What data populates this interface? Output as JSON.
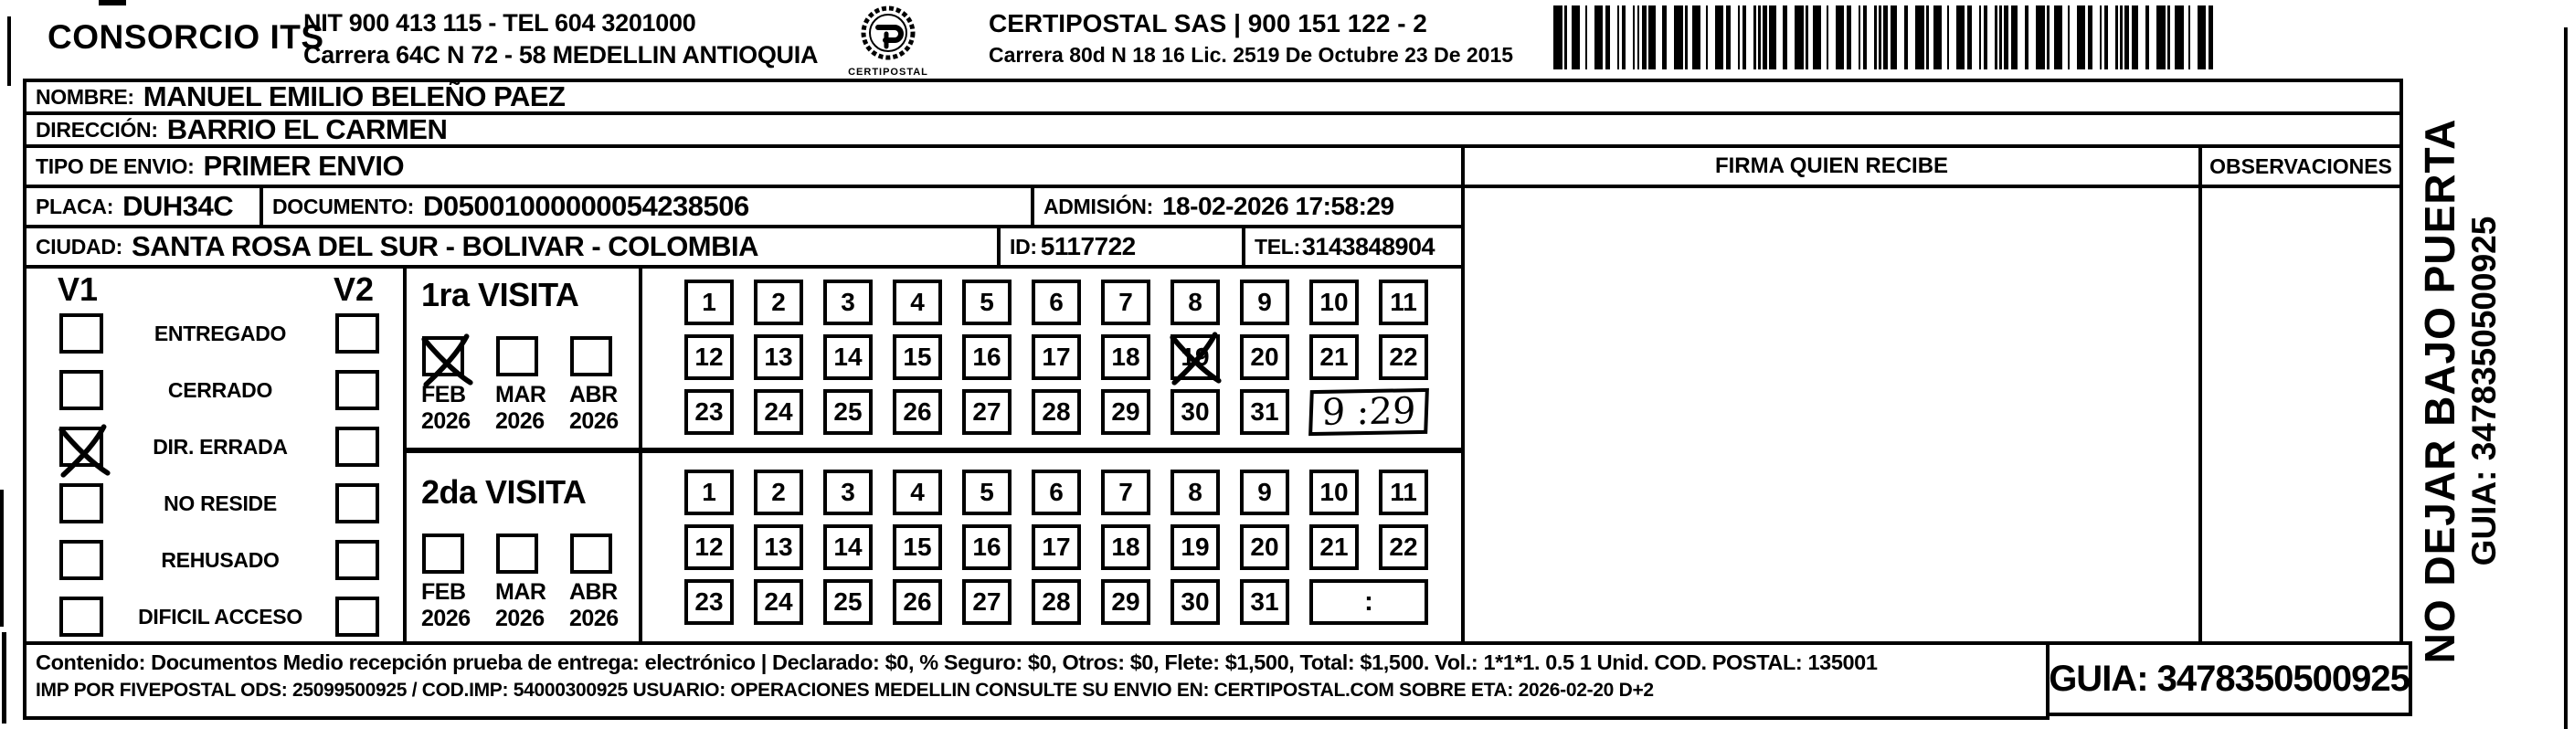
{
  "header": {
    "company": "CONSORCIO ITS",
    "nit_line": "NIT 900 413 115 - TEL 604 3201000",
    "address_line": "Carrera 64C N 72 - 58 MEDELLIN ANTIOQUIA",
    "logo_text": "CERTIPOSTAL",
    "cert_name_line": "CERTIPOSTAL SAS | 900 151 122 - 2",
    "cert_address_line": "Carrera 80d N 18 16  Lic. 2519 De Octubre 23 De 2015"
  },
  "recipient": {
    "nombre_label": "NOMBRE:",
    "nombre": "MANUEL EMILIO BELEÑO PAEZ",
    "direccion_label": "DIRECCIÓN:",
    "direccion": "BARRIO EL CARMEN",
    "tipo_envio_label": "TIPO DE ENVIO:",
    "tipo_envio": "PRIMER ENVIO",
    "placa_label": "PLACA:",
    "placa": "DUH34C",
    "documento_label": "DOCUMENTO:",
    "documento": "D05001000000054238506",
    "admision_label": "ADMISIÓN:",
    "admision": "18-02-2026 17:58:29",
    "ciudad_label": "CIUDAD:",
    "ciudad": "SANTA ROSA DEL SUR - BOLIVAR - COLOMBIA",
    "id_label": "ID:",
    "id_value": "5117722",
    "tel_label": "TEL:",
    "tel_value": "3143848904"
  },
  "signature": {
    "firma_label": "FIRMA QUIEN RECIBE",
    "observaciones_label": "OBSERVACIONES"
  },
  "status": {
    "v1": "V1",
    "v2": "V2",
    "options": [
      {
        "label": "ENTREGADO",
        "v1_checked": false,
        "v2_checked": false
      },
      {
        "label": "CERRADO",
        "v1_checked": false,
        "v2_checked": false
      },
      {
        "label": "DIR. ERRADA",
        "v1_checked": true,
        "v2_checked": false
      },
      {
        "label": "NO RESIDE",
        "v1_checked": false,
        "v2_checked": false
      },
      {
        "label": "REHUSADO",
        "v1_checked": false,
        "v2_checked": false
      },
      {
        "label": "DIFICIL ACCESO",
        "v1_checked": false,
        "v2_checked": false
      }
    ]
  },
  "visits": {
    "first": {
      "title": "1ra VISITA",
      "months": [
        {
          "month": "FEB",
          "year": "2026",
          "checked": true
        },
        {
          "month": "MAR",
          "year": "2026",
          "checked": false
        },
        {
          "month": "ABR",
          "year": "2026",
          "checked": false
        }
      ],
      "day_rows": [
        [
          1,
          2,
          3,
          4,
          5,
          6,
          7,
          8,
          9,
          10,
          11
        ],
        [
          12,
          13,
          14,
          15,
          16,
          17,
          18,
          19,
          20,
          21,
          22
        ],
        [
          23,
          24,
          25,
          26,
          27,
          28,
          29,
          30,
          31
        ]
      ],
      "crossed_day": 19,
      "time_value": "9 :29",
      "time_handwritten": true
    },
    "second": {
      "title": "2da VISITA",
      "months": [
        {
          "month": "FEB",
          "year": "2026",
          "checked": false
        },
        {
          "month": "MAR",
          "year": "2026",
          "checked": false
        },
        {
          "month": "ABR",
          "year": "2026",
          "checked": false
        }
      ],
      "day_rows": [
        [
          1,
          2,
          3,
          4,
          5,
          6,
          7,
          8,
          9,
          10,
          11
        ],
        [
          12,
          13,
          14,
          15,
          16,
          17,
          18,
          19,
          20,
          21,
          22
        ],
        [
          23,
          24,
          25,
          26,
          27,
          28,
          29,
          30,
          31
        ]
      ],
      "crossed_day": null,
      "time_value": ":",
      "time_handwritten": false
    }
  },
  "side": {
    "warning": "NO DEJAR BAJO PUERTA",
    "guia_line": "GUIA: 3478350500925",
    "guia_number": "3478350500925"
  },
  "footer": {
    "line1": "Contenido: Documentos Medio recepción prueba de entrega: electrónico | Declarado: $0, % Seguro: $0, Otros: $0, Flete: $1,500, Total: $1,500. Vol.: 1*1*1. 0.5  1 Unid. COD. POSTAL: 135001",
    "line2": "IMP POR FIVEPOSTAL ODS: 25099500925 / COD.IMP: 54000300925 USUARIO: OPERACIONES MEDELLIN CONSULTE SU ENVIO EN: CERTIPOSTAL.COM SOBRE ETA: 2026-02-20 D+2",
    "guia_line": "GUIA: 3478350500925"
  }
}
